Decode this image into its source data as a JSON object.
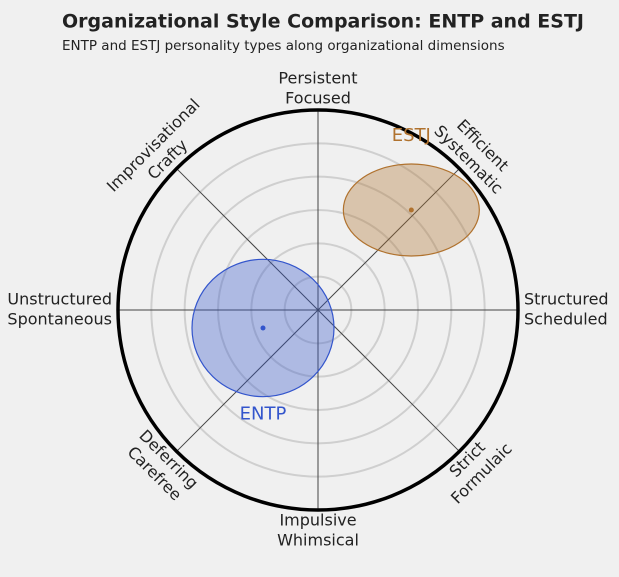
{
  "chart_data": {
    "type": "ellipse",
    "title": "Organizational Style Comparison: ENTP and ESTJ",
    "subtitle": "ENTP and ESTJ personality types along organizational dimensions",
    "axis_labels": [
      [
        "Structured",
        "Scheduled"
      ],
      [
        "Efficient",
        "Systematic"
      ],
      [
        "Persistent",
        "Focused"
      ],
      [
        "Improvisational",
        "Crafty"
      ],
      [
        "Unstructured",
        "Spontaneous"
      ],
      [
        "Deferring",
        "Carefree"
      ],
      [
        "Impulsive",
        "Whimsical"
      ],
      [
        "Strict",
        "Formulaic"
      ]
    ],
    "rlim": [
      0,
      6
    ],
    "rticks": [
      1,
      2,
      3,
      4,
      5
    ],
    "series": [
      {
        "name": "ENTP",
        "color": "#3355cc",
        "x": -1.65,
        "y": -0.54,
        "rx": 2.13,
        "ry": 2.06
      },
      {
        "name": "ESTJ",
        "color": "#b0722e",
        "x": 2.8,
        "y": 3.0,
        "rx": 2.04,
        "ry": 1.38
      }
    ]
  }
}
